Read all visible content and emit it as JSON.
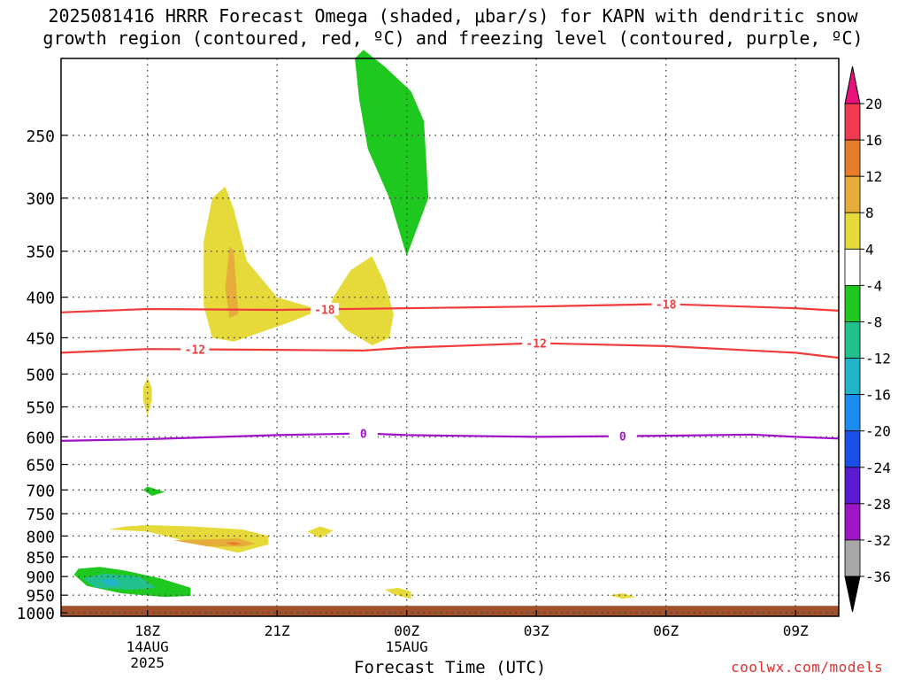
{
  "title_line1": "2025081416 HRRR Forecast Omega (shaded, μbar/s) for KAPN with dendritic snow",
  "title_line2": "growth region (contoured, red, ºC) and freezing level (contoured, purple, ºC)",
  "credit": "coolwx.com/models",
  "chart_data": {
    "type": "contour",
    "title": "2025081416 HRRR Forecast Omega (shaded, μbar/s) for KAPN with dendritic snow growth region (contoured, red, ºC) and freezing level (contoured, purple, ºC)",
    "xlabel": "Forecast Time (UTC)",
    "ylabel": "",
    "x_ticks": [
      {
        "label": "18Z",
        "sub1": "14AUG",
        "sub2": "2025",
        "hour": 18
      },
      {
        "label": "21Z",
        "sub1": "",
        "sub2": "",
        "hour": 21
      },
      {
        "label": "00Z",
        "sub1": "15AUG",
        "sub2": "",
        "hour": 24
      },
      {
        "label": "03Z",
        "sub1": "",
        "sub2": "",
        "hour": 27
      },
      {
        "label": "06Z",
        "sub1": "",
        "sub2": "",
        "hour": 30
      },
      {
        "label": "09Z",
        "sub1": "",
        "sub2": "",
        "hour": 33
      }
    ],
    "x_range_hours": [
      16,
      34
    ],
    "y_ticks": [
      "250",
      "300",
      "350",
      "400",
      "450",
      "500",
      "550",
      "600",
      "650",
      "700",
      "750",
      "800",
      "850",
      "900",
      "950",
      "1000"
    ],
    "y_range_mb": [
      200,
      1010
    ],
    "y_scale": "log-pressure",
    "grid": true,
    "colorbar": {
      "labels": [
        "20",
        "16",
        "12",
        "8",
        "4",
        "-4",
        "-8",
        "-12",
        "-16",
        "-20",
        "-24",
        "-28",
        "-32",
        "-36"
      ],
      "colors": [
        "#f03a50",
        "#e87c2a",
        "#e6ad3a",
        "#e6d93a",
        "#ffffff",
        "#1ec81e",
        "#22c08c",
        "#20b4c8",
        "#1a8cf0",
        "#1a50e8",
        "#5a1ad0",
        "#a014c8",
        "#a8a8a8"
      ],
      "top_arrow_color": "#e6147a",
      "bottom_arrow_color": "#000000"
    },
    "contours": [
      {
        "name": "-18",
        "color": "#f03c3c",
        "level": -18,
        "points": [
          [
            16,
            418
          ],
          [
            18,
            414
          ],
          [
            21,
            415
          ],
          [
            24,
            413
          ],
          [
            27,
            411
          ],
          [
            30,
            408
          ],
          [
            33,
            413
          ],
          [
            34,
            416
          ]
        ],
        "label_hours": [
          22.1,
          30.0
        ]
      },
      {
        "name": "-12",
        "color": "#f03c3c",
        "level": -12,
        "points": [
          [
            16,
            470
          ],
          [
            18,
            465
          ],
          [
            21,
            466
          ],
          [
            23,
            467
          ],
          [
            24,
            463
          ],
          [
            27,
            457
          ],
          [
            30,
            461
          ],
          [
            33,
            470
          ],
          [
            34,
            477
          ]
        ],
        "label_hours": [
          19.1,
          27.0
        ]
      },
      {
        "name": "0",
        "color": "#a010c8",
        "level": 0,
        "points": [
          [
            16,
            607
          ],
          [
            18,
            604
          ],
          [
            21,
            597
          ],
          [
            23,
            594
          ],
          [
            24,
            597
          ],
          [
            27,
            600
          ],
          [
            30,
            598
          ],
          [
            32,
            596
          ],
          [
            33,
            600
          ],
          [
            34,
            603
          ]
        ],
        "label_hours": [
          23.0,
          29.0
        ]
      }
    ],
    "omega_regions": [
      {
        "value": 4,
        "color": "#e6d93a",
        "points": [
          [
            19.5,
            300
          ],
          [
            19.3,
            340
          ],
          [
            19.3,
            410
          ],
          [
            19.5,
            450
          ],
          [
            20.0,
            455
          ],
          [
            21.3,
            430
          ],
          [
            22.0,
            415
          ],
          [
            21.0,
            400
          ],
          [
            20.3,
            360
          ],
          [
            20.0,
            310
          ],
          [
            19.8,
            290
          ]
        ]
      },
      {
        "value": 8,
        "color": "#e6ad3a",
        "points": [
          [
            19.9,
            345
          ],
          [
            19.8,
            390
          ],
          [
            19.9,
            425
          ],
          [
            20.1,
            420
          ],
          [
            20.0,
            350
          ]
        ]
      },
      {
        "value": 4,
        "color": "#e6d93a",
        "points": [
          [
            22.2,
            415
          ],
          [
            22.6,
            440
          ],
          [
            23.2,
            460
          ],
          [
            23.6,
            450
          ],
          [
            23.7,
            420
          ],
          [
            23.5,
            385
          ],
          [
            23.2,
            355
          ],
          [
            22.7,
            370
          ],
          [
            22.3,
            400
          ]
        ]
      },
      {
        "value": -4,
        "color": "#1ec81e",
        "points": [
          [
            22.8,
            200
          ],
          [
            22.9,
            225
          ],
          [
            23.1,
            260
          ],
          [
            23.6,
            300
          ],
          [
            24.0,
            355
          ],
          [
            24.5,
            300
          ],
          [
            24.4,
            240
          ],
          [
            24.1,
            220
          ],
          [
            23.5,
            205
          ],
          [
            23.0,
            195
          ]
        ]
      },
      {
        "value": 4,
        "color": "#e6d93a",
        "points": [
          [
            17.9,
            520
          ],
          [
            17.9,
            540
          ],
          [
            18.0,
            565
          ],
          [
            18.1,
            540
          ],
          [
            18.1,
            520
          ],
          [
            18.0,
            505
          ]
        ]
      },
      {
        "value": -4,
        "color": "#1ec81e",
        "points": [
          [
            17.9,
            700
          ],
          [
            18.1,
            712
          ],
          [
            18.4,
            704
          ],
          [
            18.0,
            693
          ]
        ]
      },
      {
        "value": 4,
        "color": "#e6d93a",
        "points": [
          [
            17.1,
            785
          ],
          [
            18.0,
            790
          ],
          [
            19.0,
            815
          ],
          [
            20.1,
            840
          ],
          [
            20.8,
            820
          ],
          [
            20.8,
            800
          ],
          [
            20.2,
            785
          ],
          [
            19.0,
            778
          ],
          [
            18.0,
            775
          ],
          [
            17.5,
            778
          ]
        ]
      },
      {
        "value": 8,
        "color": "#e6ad3a",
        "points": [
          [
            18.6,
            810
          ],
          [
            19.4,
            825
          ],
          [
            20.2,
            825
          ],
          [
            20.5,
            818
          ],
          [
            20.1,
            806
          ],
          [
            19.3,
            808
          ]
        ]
      },
      {
        "value": 12,
        "color": "#e87c2a",
        "points": [
          [
            19.8,
            816
          ],
          [
            20.0,
            822
          ],
          [
            20.2,
            818
          ],
          [
            20.0,
            814
          ]
        ]
      },
      {
        "value": 4,
        "color": "#e6d93a",
        "points": [
          [
            21.7,
            790
          ],
          [
            22.0,
            805
          ],
          [
            22.3,
            788
          ],
          [
            22.0,
            778
          ]
        ]
      },
      {
        "value": -4,
        "color": "#1ec81e",
        "points": [
          [
            16.3,
            895
          ],
          [
            16.6,
            925
          ],
          [
            17.4,
            945
          ],
          [
            18.4,
            955
          ],
          [
            19.0,
            952
          ],
          [
            19.0,
            930
          ],
          [
            18.3,
            905
          ],
          [
            17.5,
            885
          ],
          [
            16.9,
            875
          ],
          [
            16.4,
            880
          ]
        ]
      },
      {
        "value": -8,
        "color": "#22c08c",
        "points": [
          [
            16.5,
            905
          ],
          [
            16.8,
            930
          ],
          [
            17.6,
            935
          ],
          [
            18.2,
            930
          ],
          [
            17.8,
            900
          ],
          [
            17.0,
            892
          ]
        ]
      },
      {
        "value": -12,
        "color": "#20b4c8",
        "points": [
          [
            16.9,
            910
          ],
          [
            17.1,
            925
          ],
          [
            17.4,
            922
          ],
          [
            17.2,
            905
          ]
        ]
      },
      {
        "value": 4,
        "color": "#e6d93a",
        "points": [
          [
            23.5,
            935
          ],
          [
            23.7,
            948
          ],
          [
            24.1,
            960
          ],
          [
            24.1,
            940
          ],
          [
            23.8,
            930
          ]
        ]
      },
      {
        "value": 4,
        "color": "#e6d93a",
        "points": [
          [
            28.7,
            950
          ],
          [
            29.0,
            960
          ],
          [
            29.3,
            955
          ],
          [
            29.0,
            945
          ]
        ]
      }
    ],
    "ground_below_mb": 980,
    "ground_color": "#a0502a"
  }
}
